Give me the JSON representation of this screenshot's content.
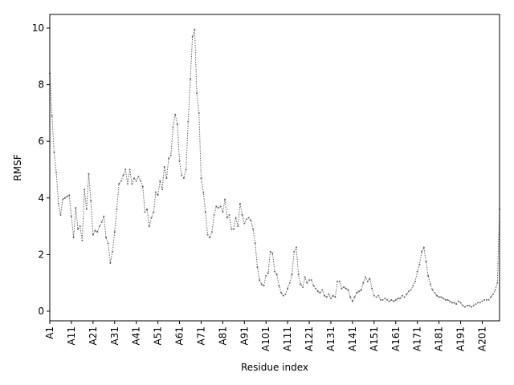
{
  "chart_data": {
    "type": "line",
    "xlabel": "Residue index",
    "ylabel": "RMSF",
    "categories": [
      "A1",
      null,
      null,
      null,
      null,
      null,
      null,
      null,
      null,
      null,
      "A11",
      null,
      null,
      null,
      null,
      null,
      null,
      null,
      null,
      null,
      "A21",
      null,
      null,
      null,
      null,
      null,
      null,
      null,
      null,
      null,
      "A31",
      null,
      null,
      null,
      null,
      null,
      null,
      null,
      null,
      null,
      "A41",
      null,
      null,
      null,
      null,
      null,
      null,
      null,
      null,
      null,
      "A51",
      null,
      null,
      null,
      null,
      null,
      null,
      null,
      null,
      null,
      "A61",
      null,
      null,
      null,
      null,
      null,
      null,
      null,
      null,
      null,
      "A71",
      null,
      null,
      null,
      null,
      null,
      null,
      null,
      null,
      null,
      "A81",
      null,
      null,
      null,
      null,
      null,
      null,
      null,
      null,
      null,
      "A91",
      null,
      null,
      null,
      null,
      null,
      null,
      null,
      null,
      null,
      "A101",
      null,
      null,
      null,
      null,
      null,
      null,
      null,
      null,
      null,
      "A111",
      null,
      null,
      null,
      null,
      null,
      null,
      null,
      null,
      null,
      "A121",
      null,
      null,
      null,
      null,
      null,
      null,
      null,
      null,
      null,
      "A131",
      null,
      null,
      null,
      null,
      null,
      null,
      null,
      null,
      null,
      "A141",
      null,
      null,
      null,
      null,
      null,
      null,
      null,
      null,
      null,
      "A151",
      null,
      null,
      null,
      null,
      null,
      null,
      null,
      null,
      null,
      "A161",
      null,
      null,
      null,
      null,
      null,
      null,
      null,
      null,
      null,
      "A171",
      null,
      null,
      null,
      null,
      null,
      null,
      null,
      null,
      null,
      "A181",
      null,
      null,
      null,
      null,
      null,
      null,
      null,
      null,
      null,
      "A191",
      null,
      null,
      null,
      null,
      null,
      null,
      null,
      null,
      null,
      "A201",
      null,
      null,
      null,
      null,
      null,
      null,
      null,
      null
    ],
    "values": [
      8.4,
      6.9,
      5.6,
      4.9,
      3.8,
      3.4,
      3.95,
      4.0,
      4.05,
      4.1,
      3.35,
      2.6,
      3.65,
      2.9,
      3.0,
      2.5,
      4.3,
      3.6,
      4.85,
      3.9,
      2.7,
      2.85,
      2.8,
      3.0,
      3.15,
      3.35,
      2.6,
      2.4,
      1.7,
      2.1,
      2.8,
      3.6,
      4.5,
      4.6,
      4.8,
      5.0,
      4.5,
      5.0,
      4.5,
      4.7,
      4.6,
      4.75,
      4.6,
      4.4,
      3.5,
      3.6,
      3.0,
      3.3,
      3.5,
      4.2,
      4.1,
      4.6,
      4.3,
      5.1,
      4.7,
      5.4,
      5.5,
      6.5,
      6.95,
      6.6,
      5.3,
      4.8,
      4.7,
      5.0,
      6.7,
      8.2,
      9.7,
      9.95,
      7.7,
      7.0,
      4.7,
      4.2,
      3.5,
      2.7,
      2.6,
      2.8,
      3.4,
      3.7,
      3.65,
      3.7,
      3.5,
      3.95,
      3.3,
      3.4,
      2.9,
      2.9,
      3.3,
      3.0,
      3.8,
      3.4,
      3.1,
      3.25,
      3.3,
      3.2,
      2.9,
      2.4,
      1.55,
      1.1,
      0.95,
      0.9,
      1.25,
      1.35,
      2.1,
      2.05,
      1.4,
      1.3,
      0.9,
      0.65,
      0.55,
      0.6,
      0.8,
      1.0,
      1.3,
      2.1,
      2.25,
      1.3,
      0.95,
      0.85,
      1.2,
      1.0,
      1.1,
      1.1,
      0.9,
      0.8,
      0.7,
      0.65,
      0.75,
      0.55,
      0.5,
      0.6,
      0.45,
      0.55,
      0.5,
      1.05,
      1.05,
      0.8,
      0.85,
      0.8,
      0.75,
      0.5,
      0.35,
      0.5,
      0.65,
      0.7,
      0.75,
      1.0,
      1.2,
      1.05,
      1.15,
      0.8,
      0.55,
      0.5,
      0.55,
      0.4,
      0.4,
      0.45,
      0.4,
      0.35,
      0.4,
      0.35,
      0.4,
      0.45,
      0.45,
      0.55,
      0.5,
      0.6,
      0.7,
      0.75,
      0.9,
      1.05,
      1.4,
      1.65,
      2.1,
      2.25,
      1.75,
      1.25,
      0.95,
      0.75,
      0.65,
      0.55,
      0.5,
      0.5,
      0.45,
      0.4,
      0.4,
      0.35,
      0.3,
      0.3,
      0.25,
      0.35,
      0.3,
      0.2,
      0.15,
      0.2,
      0.2,
      0.15,
      0.2,
      0.25,
      0.3,
      0.3,
      0.35,
      0.4,
      0.4,
      0.4,
      0.5,
      0.6,
      0.75,
      1.0,
      3.6
    ],
    "color": "#666666",
    "ylim": [
      -0.34,
      10.48
    ],
    "yticks": [
      0,
      2,
      4,
      6,
      8,
      10
    ],
    "grid": false
  }
}
